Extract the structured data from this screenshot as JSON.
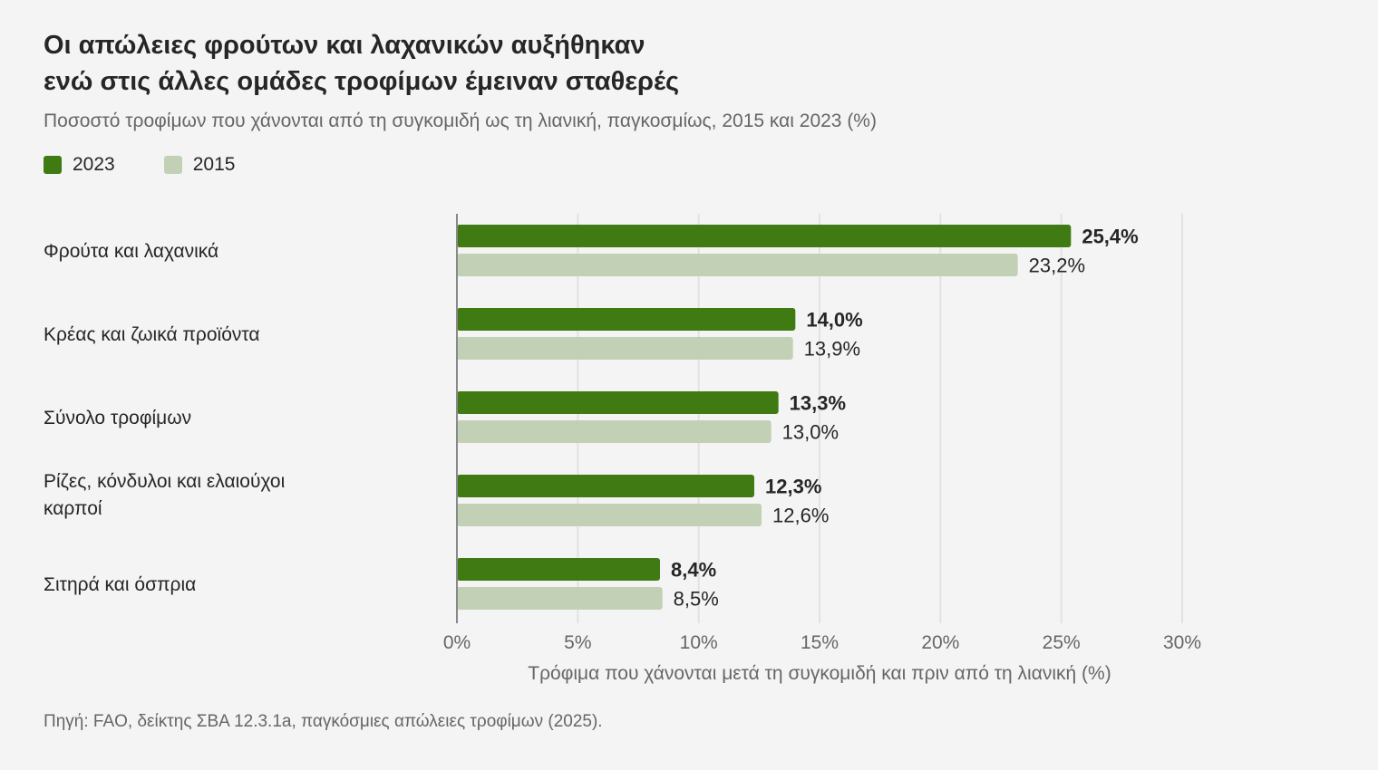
{
  "title_lines": [
    "Οι απώλειες φρούτων και λαχανικών αυξήθηκαν",
    "ενώ στις άλλες ομάδες τροφίμων έμειναν σταθερές"
  ],
  "subtitle": "Ποσοστό τροφίμων που χάνονται από τη συγκομιδή ως τη λιανική, παγκοσμίως, 2015 και 2023 (%)",
  "source": "Πηγή: FAO, δείκτης ΣΒΑ 12.3.1a, παγκόσμιες απώλειες τροφίμων (2025).",
  "colors": {
    "series_2023": "#3f7a12",
    "series_2015": "#c2d0b5",
    "grid": "#e2e2e2",
    "axis": "#888888"
  },
  "chart_data": {
    "type": "bar",
    "orientation": "horizontal",
    "categories": [
      "Φρούτα και λαχανικά",
      "Κρέας και ζωικά προϊόντα",
      "Σύνολο τροφίμων",
      "Ρίζες, κόνδυλοι και ελαιούχοι καρποί",
      "Σιτηρά και όσπρια"
    ],
    "series": [
      {
        "name": "2023",
        "values": [
          25.4,
          14.0,
          13.3,
          12.3,
          8.4
        ],
        "labels": [
          "25,4%",
          "14,0%",
          "13,3%",
          "12,3%",
          "8,4%"
        ]
      },
      {
        "name": "2015",
        "values": [
          23.2,
          13.9,
          13.0,
          12.6,
          8.5
        ],
        "labels": [
          "23,2%",
          "13,9%",
          "13,0%",
          "12,6%",
          "8,5%"
        ]
      }
    ],
    "xlim": [
      0,
      30
    ],
    "xticks": [
      0,
      5,
      10,
      15,
      20,
      25,
      30
    ],
    "xtick_labels": [
      "0%",
      "5%",
      "10%",
      "15%",
      "20%",
      "25%",
      "30%"
    ],
    "xlabel": "Τρόφιμα που χάνονται μετά τη συγκομιδή και πριν από τη λιανική (%)",
    "grid": true,
    "legend_position": "top-left"
  }
}
